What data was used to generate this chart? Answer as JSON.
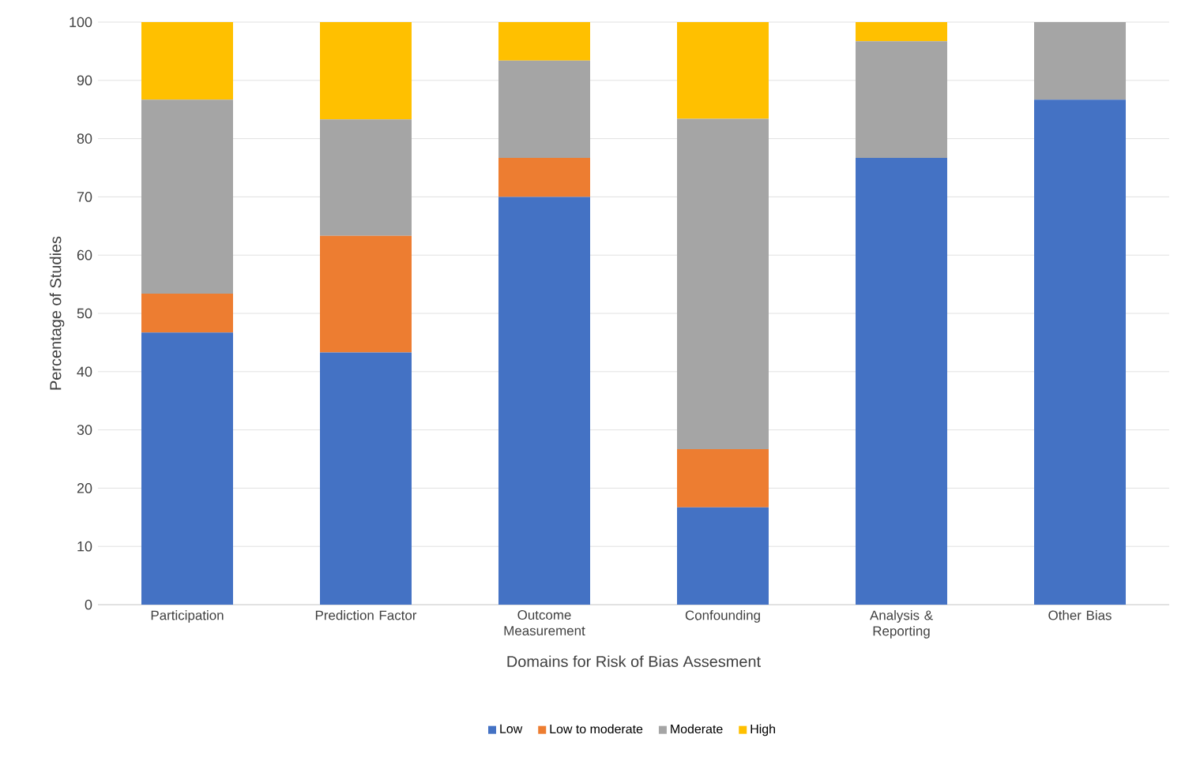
{
  "chart_data": {
    "type": "bar",
    "stacked": true,
    "xlabel": "Domains for Risk of Bias Assesment",
    "ylabel": "Percentage of Studies",
    "categories": [
      "Participation",
      "Prediction Factor",
      "Outcome Measurement",
      "Confounding",
      "Analysis & Reporting",
      "Other Bias"
    ],
    "series": [
      {
        "name": "Low",
        "color": "#4472c4",
        "values": [
          46.7,
          43.3,
          70,
          16.7,
          76.7,
          86.7
        ]
      },
      {
        "name": "Low to moderate",
        "color": "#ed7d31",
        "values": [
          6.7,
          20,
          6.7,
          10,
          0,
          0
        ]
      },
      {
        "name": "Moderate",
        "color": "#a5a5a5",
        "values": [
          33.3,
          20,
          16.7,
          56.7,
          20,
          13.3
        ]
      },
      {
        "name": "High",
        "color": "#ffc000",
        "values": [
          13.3,
          16.7,
          6.6,
          16.6,
          3.3,
          0
        ]
      }
    ],
    "ylim": [
      0,
      100
    ],
    "yticks": [
      0,
      10,
      20,
      30,
      40,
      50,
      60,
      70,
      80,
      90,
      100
    ],
    "grid": "y",
    "legend": "bottom"
  }
}
